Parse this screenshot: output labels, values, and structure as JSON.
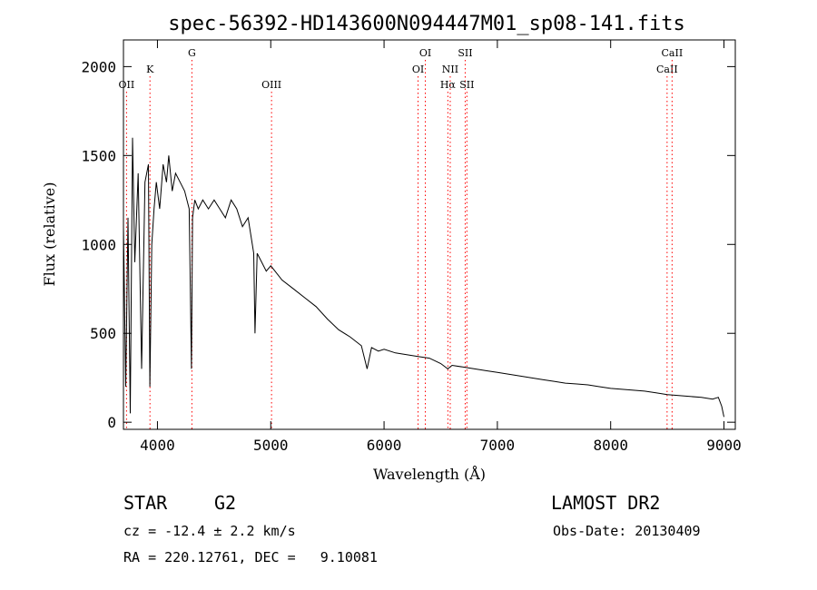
{
  "chart_data": {
    "type": "line",
    "title": "spec-56392-HD143600N094447M01_sp08-141.fits",
    "xlabel": "Wavelength (Å)",
    "ylabel": "Flux (relative)",
    "xlim": [
      3700,
      9100
    ],
    "ylim": [
      -40,
      2150
    ],
    "x_ticks": [
      4000,
      5000,
      6000,
      7000,
      8000,
      9000
    ],
    "y_ticks": [
      0,
      500,
      1000,
      1500,
      2000
    ],
    "grid": false,
    "line_color": "#000000",
    "series": [
      {
        "x": [
          3700,
          3720,
          3740,
          3760,
          3780,
          3800,
          3830,
          3860,
          3890,
          3920,
          3933,
          3950,
          3970,
          3990,
          4020,
          4050,
          4080,
          4100,
          4130,
          4160,
          4200,
          4240,
          4280,
          4300,
          4310,
          4330,
          4360,
          4400,
          4450,
          4500,
          4550,
          4600,
          4650,
          4700,
          4750,
          4800,
          4850,
          4861,
          4880,
          4920,
          4960,
          5000,
          5100,
          5200,
          5300,
          5400,
          5500,
          5600,
          5700,
          5800,
          5850,
          5890,
          5950,
          6000,
          6100,
          6200,
          6300,
          6400,
          6500,
          6563,
          6600,
          6700,
          6800,
          6900,
          7000,
          7100,
          7200,
          7300,
          7400,
          7500,
          7600,
          7700,
          7800,
          7900,
          8000,
          8100,
          8200,
          8300,
          8400,
          8500,
          8600,
          8700,
          8800,
          8900,
          8950,
          8980,
          9000
        ],
        "y": [
          1100,
          200,
          1150,
          50,
          1600,
          900,
          1400,
          300,
          1350,
          1450,
          200,
          1000,
          1200,
          1350,
          1200,
          1450,
          1350,
          1500,
          1300,
          1400,
          1350,
          1300,
          1200,
          300,
          1150,
          1250,
          1200,
          1250,
          1200,
          1250,
          1200,
          1150,
          1250,
          1200,
          1100,
          1150,
          950,
          500,
          950,
          900,
          850,
          880,
          800,
          750,
          700,
          650,
          580,
          520,
          480,
          430,
          300,
          420,
          400,
          410,
          390,
          380,
          370,
          360,
          330,
          300,
          320,
          310,
          300,
          290,
          280,
          270,
          260,
          250,
          240,
          230,
          220,
          215,
          210,
          200,
          190,
          185,
          180,
          175,
          165,
          155,
          150,
          145,
          140,
          130,
          140,
          90,
          30
        ]
      }
    ],
    "line_markers": [
      {
        "label": "OII",
        "wavelength": 3727,
        "row": 2
      },
      {
        "label": "K",
        "wavelength": 3934,
        "row": 1
      },
      {
        "label": "G",
        "wavelength": 4304,
        "row": 0
      },
      {
        "label": "OIII",
        "wavelength": 5007,
        "row": 2
      },
      {
        "label": "OI",
        "wavelength": 6300,
        "row": 1
      },
      {
        "label": "OI",
        "wavelength": 6364,
        "row": 0
      },
      {
        "label": "Hα",
        "wavelength": 6563,
        "row": 2
      },
      {
        "label": "NII",
        "wavelength": 6584,
        "row": 1
      },
      {
        "label": "SII",
        "wavelength": 6716,
        "row": 0
      },
      {
        "label": "SII",
        "wavelength": 6731,
        "row": 2
      },
      {
        "label": "CaII",
        "wavelength": 8498,
        "row": 1
      },
      {
        "label": "CaII",
        "wavelength": 8542,
        "row": 0
      }
    ],
    "marker_color": "#ff0000"
  },
  "info": {
    "class_label": "STAR",
    "subclass": "G2",
    "survey": "LAMOST DR2",
    "cz": "cz = -12.4 ± 2.2 km/s",
    "obs_date": "Obs-Date: 20130409",
    "radec": "RA = 220.12761, DEC =   9.10081"
  }
}
